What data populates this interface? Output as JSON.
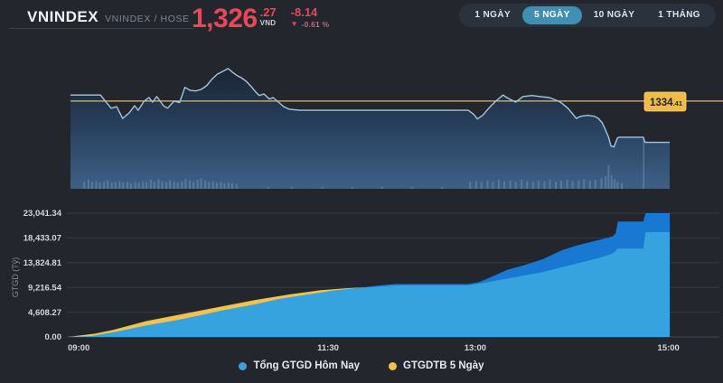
{
  "header": {
    "title": "VNINDEX",
    "subtitle": "VNINDEX / HOSE",
    "price": "1,326",
    "price_decimals": ".27",
    "currency": "VND",
    "change": "-8.14",
    "change_percent": "-0.61 %",
    "negative_color": "#e8485a"
  },
  "range_buttons": {
    "items": [
      {
        "label": "1 NGÀY",
        "active": false
      },
      {
        "label": "5 NGÀY",
        "active": true
      },
      {
        "label": "10 NGÀY",
        "active": false
      },
      {
        "label": "1 THÁNG",
        "active": false
      }
    ],
    "active_color": "#4090b4"
  },
  "chart_data": [
    {
      "name": "price-intraday-5day",
      "type": "line",
      "ylim": [
        1317.0,
        1344.5
      ],
      "ref_value": 1334.41,
      "ref_label_main": "1334",
      "ref_label_small": ".41",
      "ref_color": "#ecba4c",
      "ref_label_bg": "#f2bb45",
      "line_color": "#a3c6e0",
      "fill_top": "#161b25",
      "fill_mid": "#28405c",
      "fill_bottom": "#3e6087",
      "divider_t": 0.9565,
      "points": [
        [
          0,
          1335.6
        ],
        [
          0.05,
          1335.6
        ],
        [
          0.06,
          1334.1
        ],
        [
          0.068,
          1333.0
        ],
        [
          0.077,
          1333.3
        ],
        [
          0.087,
          1331.0
        ],
        [
          0.098,
          1332.1
        ],
        [
          0.107,
          1333.5
        ],
        [
          0.113,
          1332.6
        ],
        [
          0.123,
          1334.4
        ],
        [
          0.131,
          1335.1
        ],
        [
          0.137,
          1334.2
        ],
        [
          0.144,
          1335.3
        ],
        [
          0.155,
          1333.5
        ],
        [
          0.162,
          1333.0
        ],
        [
          0.173,
          1334.4
        ],
        [
          0.182,
          1334.1
        ],
        [
          0.191,
          1337.1
        ],
        [
          0.2,
          1336.5
        ],
        [
          0.209,
          1336.4
        ],
        [
          0.218,
          1336.7
        ],
        [
          0.227,
          1337.4
        ],
        [
          0.236,
          1338.7
        ],
        [
          0.245,
          1339.7
        ],
        [
          0.255,
          1340.3
        ],
        [
          0.263,
          1340.8
        ],
        [
          0.27,
          1340.1
        ],
        [
          0.278,
          1339.4
        ],
        [
          0.285,
          1339.0
        ],
        [
          0.293,
          1338.3
        ],
        [
          0.302,
          1337.2
        ],
        [
          0.309,
          1336.2
        ],
        [
          0.315,
          1335.5
        ],
        [
          0.323,
          1335.8
        ],
        [
          0.332,
          1334.8
        ],
        [
          0.338,
          1335.1
        ],
        [
          0.345,
          1334.4
        ],
        [
          0.356,
          1333.3
        ],
        [
          0.365,
          1332.8
        ],
        [
          0.383,
          1332.6
        ],
        [
          0.664,
          1332.6
        ],
        [
          0.673,
          1331.8
        ],
        [
          0.679,
          1330.9
        ],
        [
          0.688,
          1331.6
        ],
        [
          0.698,
          1333.0
        ],
        [
          0.71,
          1334.4
        ],
        [
          0.722,
          1335.6
        ],
        [
          0.728,
          1335.1
        ],
        [
          0.736,
          1334.6
        ],
        [
          0.743,
          1334.2
        ],
        [
          0.755,
          1335.3
        ],
        [
          0.77,
          1335.5
        ],
        [
          0.784,
          1335.3
        ],
        [
          0.799,
          1335.1
        ],
        [
          0.814,
          1334.4
        ],
        [
          0.821,
          1333.9
        ],
        [
          0.83,
          1333.0
        ],
        [
          0.838,
          1331.9
        ],
        [
          0.844,
          1331.0
        ],
        [
          0.851,
          1331.4
        ],
        [
          0.863,
          1331.6
        ],
        [
          0.875,
          1331.4
        ],
        [
          0.881,
          1331.0
        ],
        [
          0.887,
          1330.2
        ],
        [
          0.893,
          1328.7
        ],
        [
          0.898,
          1327.3
        ],
        [
          0.902,
          1325.6
        ],
        [
          0.907,
          1325.4
        ],
        [
          0.91,
          1326.3
        ],
        [
          0.913,
          1327.2
        ],
        [
          0.916,
          1327.3
        ],
        [
          0.956,
          1327.3
        ],
        [
          0.959,
          1326.3
        ],
        [
          1,
          1326.3
        ]
      ],
      "volume_bars": [
        [
          0.023,
          0.05
        ],
        [
          0.03,
          0.065
        ],
        [
          0.036,
          0.05
        ],
        [
          0.043,
          0.055
        ],
        [
          0.049,
          0.045
        ],
        [
          0.056,
          0.05
        ],
        [
          0.062,
          0.06
        ],
        [
          0.069,
          0.045
        ],
        [
          0.075,
          0.05
        ],
        [
          0.082,
          0.055
        ],
        [
          0.088,
          0.045
        ],
        [
          0.095,
          0.05
        ],
        [
          0.101,
          0.04
        ],
        [
          0.108,
          0.05
        ],
        [
          0.114,
          0.045
        ],
        [
          0.121,
          0.055
        ],
        [
          0.127,
          0.05
        ],
        [
          0.134,
          0.065
        ],
        [
          0.14,
          0.05
        ],
        [
          0.147,
          0.07
        ],
        [
          0.153,
          0.055
        ],
        [
          0.16,
          0.05
        ],
        [
          0.166,
          0.06
        ],
        [
          0.173,
          0.05
        ],
        [
          0.179,
          0.045
        ],
        [
          0.186,
          0.055
        ],
        [
          0.192,
          0.07
        ],
        [
          0.199,
          0.06
        ],
        [
          0.205,
          0.05
        ],
        [
          0.212,
          0.065
        ],
        [
          0.218,
          0.075
        ],
        [
          0.225,
          0.06
        ],
        [
          0.231,
          0.05
        ],
        [
          0.238,
          0.055
        ],
        [
          0.244,
          0.045
        ],
        [
          0.251,
          0.05
        ],
        [
          0.257,
          0.04
        ],
        [
          0.264,
          0.045
        ],
        [
          0.27,
          0.04
        ],
        [
          0.277,
          0.035
        ],
        [
          0.33,
          0.015
        ],
        [
          0.37,
          0.012
        ],
        [
          0.42,
          0.015
        ],
        [
          0.47,
          0.012
        ],
        [
          0.52,
          0.015
        ],
        [
          0.57,
          0.012
        ],
        [
          0.62,
          0.015
        ],
        [
          0.667,
          0.05
        ],
        [
          0.677,
          0.055
        ],
        [
          0.686,
          0.05
        ],
        [
          0.696,
          0.06
        ],
        [
          0.705,
          0.05
        ],
        [
          0.715,
          0.065
        ],
        [
          0.724,
          0.055
        ],
        [
          0.734,
          0.06
        ],
        [
          0.743,
          0.05
        ],
        [
          0.753,
          0.065
        ],
        [
          0.762,
          0.055
        ],
        [
          0.772,
          0.05
        ],
        [
          0.781,
          0.06
        ],
        [
          0.791,
          0.055
        ],
        [
          0.8,
          0.065
        ],
        [
          0.81,
          0.05
        ],
        [
          0.819,
          0.06
        ],
        [
          0.829,
          0.065
        ],
        [
          0.838,
          0.055
        ],
        [
          0.848,
          0.06
        ],
        [
          0.857,
          0.07
        ],
        [
          0.867,
          0.06
        ],
        [
          0.876,
          0.065
        ],
        [
          0.886,
          0.075
        ],
        [
          0.893,
          0.09
        ],
        [
          0.898,
          0.17
        ],
        [
          0.903,
          0.1
        ],
        [
          0.908,
          0.07
        ],
        [
          0.913,
          0.05
        ],
        [
          0.92,
          0.04
        ]
      ]
    },
    {
      "name": "turnover-cumulative",
      "type": "area",
      "ylabel": "GTGD (Tỷ)",
      "ylim": [
        0,
        23041.34
      ],
      "yticks": [
        0,
        4608.27,
        9216.54,
        13824.81,
        18433.07,
        23041.34
      ],
      "ytick_labels": [
        "0.00",
        "4,608.27",
        "9,216.54",
        "13,824.81",
        "18,433.07",
        "23,041.34"
      ],
      "xticks": [
        {
          "t": 0,
          "label": "09:00",
          "align": "start"
        },
        {
          "t": 0.4325,
          "label": "11:30",
          "align": "middle"
        },
        {
          "t": 0.677,
          "label": "13:00",
          "align": "middle"
        },
        {
          "t": 0.998,
          "label": "15:00",
          "align": "middle"
        }
      ],
      "grid_color": "#343a45",
      "axis_color": "#3f4652",
      "series": [
        {
          "name": "Tổng GTGD Hôm Nay",
          "color": "#36a3de",
          "band_color": "#1878d2",
          "points": [
            [
              0,
              0
            ],
            [
              0.04,
              150
            ],
            [
              0.08,
              950
            ],
            [
              0.13,
              2100
            ],
            [
              0.18,
              3100
            ],
            [
              0.22,
              4000
            ],
            [
              0.26,
              5000
            ],
            [
              0.31,
              6000
            ],
            [
              0.35,
              7050
            ],
            [
              0.4,
              7900
            ],
            [
              0.44,
              8600
            ],
            [
              0.49,
              9200
            ],
            [
              0.52,
              9600
            ],
            [
              0.545,
              9850
            ],
            [
              0.665,
              9850
            ],
            [
              0.683,
              10200
            ],
            [
              0.7,
              11000
            ],
            [
              0.73,
              12500
            ],
            [
              0.76,
              13400
            ],
            [
              0.79,
              14500
            ],
            [
              0.82,
              16100
            ],
            [
              0.845,
              17000
            ],
            [
              0.875,
              17840
            ],
            [
              0.905,
              18700
            ],
            [
              0.91,
              19200
            ],
            [
              0.914,
              21480
            ],
            [
              0.956,
              21480
            ],
            [
              0.96,
              23041
            ],
            [
              1,
              23041
            ]
          ]
        },
        {
          "name": "GTGDTB 5 Ngày",
          "color": "#f2c14e",
          "points": [
            [
              0,
              0
            ],
            [
              0.045,
              600
            ],
            [
              0.075,
              1300
            ],
            [
              0.13,
              2950
            ],
            [
              0.19,
              4250
            ],
            [
              0.25,
              5550
            ],
            [
              0.31,
              6850
            ],
            [
              0.37,
              7950
            ],
            [
              0.42,
              8700
            ],
            [
              0.46,
              9050
            ],
            [
              0.52,
              9400
            ],
            [
              0.545,
              9600
            ],
            [
              0.665,
              9600
            ],
            [
              0.683,
              9900
            ],
            [
              0.73,
              10860
            ],
            [
              0.785,
              11970
            ],
            [
              0.835,
              13370
            ],
            [
              0.884,
              14770
            ],
            [
              0.905,
              15500
            ],
            [
              0.914,
              16450
            ],
            [
              0.956,
              16450
            ],
            [
              0.96,
              19520
            ],
            [
              1,
              19520
            ]
          ]
        }
      ]
    }
  ],
  "legend": {
    "items": [
      {
        "label": "Tổng GTGD Hôm Nay",
        "color": "#36a3de"
      },
      {
        "label": "GTGDTB 5 Ngày",
        "color": "#f2c14e"
      }
    ]
  }
}
